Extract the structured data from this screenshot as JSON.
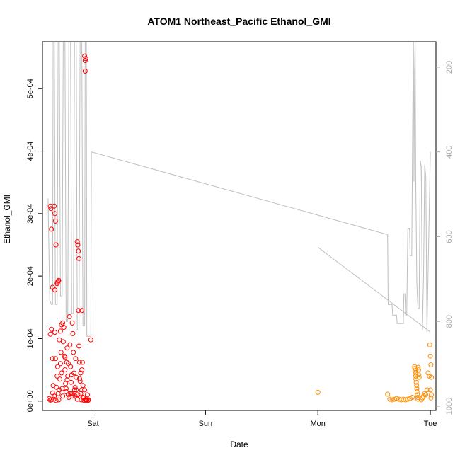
{
  "chart_data": {
    "type": "scatter",
    "title": "ATOM1 Northeast_Pacific Ethanol_GMI",
    "xlabel": "Date",
    "ylabel": "Ethanol_GMI",
    "x_unit": "days",
    "xlim": [
      -0.45,
      3.05
    ],
    "ylim": [
      -1.5e-05,
      0.000575
    ],
    "x_ticks": [
      {
        "value": 0,
        "label": "Sat"
      },
      {
        "value": 1,
        "label": "Sun"
      },
      {
        "value": 2,
        "label": "Mon"
      },
      {
        "value": 3,
        "label": "Tue"
      }
    ],
    "y_ticks": [
      {
        "value": 0,
        "label": "0e+00"
      },
      {
        "value": 0.0001,
        "label": "1e-04"
      },
      {
        "value": 0.0002,
        "label": "2e-04"
      },
      {
        "value": 0.0003,
        "label": "3e-04"
      },
      {
        "value": 0.0004,
        "label": "4e-04"
      },
      {
        "value": 0.0005,
        "label": "5e-04"
      }
    ],
    "right_axis": {
      "label": "",
      "color": "#a8a8a8",
      "lim_top": 140,
      "lim_bottom": 1010,
      "ticks": [
        {
          "value": 200,
          "label": "200"
        },
        {
          "value": 400,
          "label": "400"
        },
        {
          "value": 600,
          "label": "600"
        },
        {
          "value": 800,
          "label": "800"
        },
        {
          "value": 1000,
          "label": "1000"
        }
      ]
    },
    "series": [
      {
        "color": "#ff0000",
        "marker": "open-circle",
        "points": [
          [
            -0.39,
            4e-06
          ],
          [
            -0.38,
            1.5e-06
          ],
          [
            -0.37,
            2e-06
          ],
          [
            -0.36,
            1.3e-05
          ],
          [
            -0.355,
            2.5e-05
          ],
          [
            -0.35,
            3e-06
          ],
          [
            -0.345,
            8e-06
          ],
          [
            -0.34,
            0.00011
          ],
          [
            -0.335,
            6.8e-05
          ],
          [
            -0.33,
            1e-06
          ],
          [
            -0.325,
            2.2e-05
          ],
          [
            -0.32,
            4e-05
          ],
          [
            -0.315,
            5.5e-05
          ],
          [
            -0.31,
            1.2e-05
          ],
          [
            -0.305,
            2e-06
          ],
          [
            -0.3,
            1.8e-05
          ],
          [
            -0.295,
            3.5e-05
          ],
          [
            -0.29,
            6e-05
          ],
          [
            -0.285,
            7.8e-05
          ],
          [
            -0.28,
            4.5e-05
          ],
          [
            -0.275,
            2e-05
          ],
          [
            -0.27,
            8e-06
          ],
          [
            -0.265,
            9.5e-05
          ],
          [
            -0.26,
            0.000118
          ],
          [
            -0.255,
            7.2e-05
          ],
          [
            -0.25,
            5e-05
          ],
          [
            -0.245,
            2.8e-05
          ],
          [
            -0.24,
            1.5e-05
          ],
          [
            -0.235,
            6.2e-05
          ],
          [
            -0.23,
            8.5e-05
          ],
          [
            -0.225,
            4e-05
          ],
          [
            -0.22,
            1e-05
          ],
          [
            -0.215,
            6e-06
          ],
          [
            -0.21,
            0.000135
          ],
          [
            -0.205,
            9e-05
          ],
          [
            -0.2,
            5.5e-05
          ],
          [
            -0.195,
            3e-05
          ],
          [
            -0.19,
            1.2e-05
          ],
          [
            -0.185,
            0.000125
          ],
          [
            -0.18,
            0.000108
          ],
          [
            -0.175,
            7.8e-05
          ],
          [
            -0.17,
            4.5e-05
          ],
          [
            -0.165,
            1.8e-05
          ],
          [
            -0.16,
            8e-06
          ],
          [
            -0.155,
            6.8e-05
          ],
          [
            -0.15,
            3.8e-05
          ],
          [
            -0.145,
            1e-05
          ],
          [
            -0.14,
            3e-06
          ],
          [
            -0.135,
            1e-05
          ],
          [
            -0.13,
            0.000145
          ],
          [
            -0.125,
            8.8e-05
          ],
          [
            -0.12,
            6.2e-05
          ],
          [
            -0.115,
            3.2e-05
          ],
          [
            -0.11,
            1.2e-05
          ],
          [
            -0.105,
            2e-06
          ],
          [
            -0.1,
            5e-05
          ],
          [
            -0.095,
            6.2e-05
          ],
          [
            -0.09,
            2.5e-05
          ],
          [
            -0.085,
            5e-06
          ],
          [
            -0.08,
            1e-06
          ],
          [
            -0.075,
            1.8e-05
          ],
          [
            -0.07,
            2e-06
          ],
          [
            -0.065,
            1.5e-06
          ],
          [
            -0.06,
            2e-06
          ],
          [
            -0.055,
            2e-06
          ],
          [
            -0.05,
            1e-05
          ],
          [
            -0.045,
            1e-06
          ],
          [
            -0.04,
            2e-06
          ],
          [
            -0.02,
            9.8e-05
          ],
          [
            -0.38,
            0.000312
          ],
          [
            -0.375,
            0.000308
          ],
          [
            -0.37,
            0.000275
          ],
          [
            -0.34,
            0.0003
          ],
          [
            -0.335,
            0.000288
          ],
          [
            -0.33,
            0.00025
          ],
          [
            -0.34,
            0.000178
          ],
          [
            -0.36,
            0.000182
          ],
          [
            -0.32,
            0.000188
          ],
          [
            -0.315,
            0.00019
          ],
          [
            -0.31,
            0.000192
          ],
          [
            -0.305,
            0.000193
          ],
          [
            -0.345,
            0.000312
          ],
          [
            -0.14,
            0.000255
          ],
          [
            -0.135,
            0.00025
          ],
          [
            -0.13,
            0.00024
          ],
          [
            -0.125,
            0.000228
          ],
          [
            -0.1,
            0.000145
          ],
          [
            -0.075,
            0.000552
          ],
          [
            -0.07,
            0.000545
          ],
          [
            -0.065,
            0.000548
          ],
          [
            -0.07,
            0.000528
          ],
          [
            -0.38,
            0.000107
          ],
          [
            -0.37,
            0.000115
          ],
          [
            -0.36,
            6.8e-05
          ],
          [
            -0.3,
            9.8e-05
          ],
          [
            -0.29,
            0.000112
          ],
          [
            -0.28,
            0.000122
          ],
          [
            -0.27,
            0.000125
          ],
          [
            -0.25,
            7e-05
          ],
          [
            -0.24,
            2e-05
          ],
          [
            -0.23,
            3.4e-05
          ],
          [
            -0.22,
            6e-05
          ],
          [
            -0.2,
            1.2e-05
          ],
          [
            -0.19,
            4.2e-05
          ],
          [
            -0.18,
            8e-06
          ],
          [
            -0.16,
            2.2e-05
          ],
          [
            -0.15,
            1.8e-05
          ],
          [
            -0.12,
            3.6e-05
          ],
          [
            -0.11,
            4.5e-05
          ],
          [
            -0.1,
            1.8e-05
          ],
          [
            -0.09,
            6e-06
          ]
        ]
      },
      {
        "color": "#ff8c00",
        "marker": "open-circle",
        "points": [
          [
            2.0,
            1.4e-05
          ],
          [
            2.62,
            1.1e-05
          ],
          [
            2.64,
            3e-06
          ],
          [
            2.66,
            2e-06
          ],
          [
            2.68,
            3e-06
          ],
          [
            2.7,
            4e-06
          ],
          [
            2.72,
            3e-06
          ],
          [
            2.74,
            2e-06
          ],
          [
            2.76,
            3e-06
          ],
          [
            2.78,
            2e-06
          ],
          [
            2.8,
            3e-06
          ],
          [
            2.82,
            4e-06
          ],
          [
            2.84,
            6e-06
          ],
          [
            2.86,
            5.5e-05
          ],
          [
            2.862,
            5.2e-05
          ],
          [
            2.865,
            4.8e-05
          ],
          [
            2.868,
            4.5e-05
          ],
          [
            2.87,
            4e-05
          ],
          [
            2.872,
            3.5e-05
          ],
          [
            2.875,
            3e-05
          ],
          [
            2.878,
            2.5e-05
          ],
          [
            2.88,
            2e-05
          ],
          [
            2.882,
            1.5e-05
          ],
          [
            2.885,
            1e-05
          ],
          [
            2.888,
            6e-06
          ],
          [
            2.89,
            3e-06
          ],
          [
            2.892,
            5.4e-05
          ],
          [
            2.895,
            5e-05
          ],
          [
            2.898,
            4.2e-05
          ],
          [
            2.9,
            3.8e-05
          ],
          [
            2.92,
            2e-06
          ],
          [
            2.93,
            5e-06
          ],
          [
            2.94,
            8e-06
          ],
          [
            2.95,
            1.2e-05
          ],
          [
            2.96,
            1e-05
          ],
          [
            2.97,
            1.8e-05
          ],
          [
            2.98,
            4.5e-05
          ],
          [
            2.99,
            4e-05
          ],
          [
            2.995,
            9e-05
          ],
          [
            3.0,
            7.2e-05
          ],
          [
            3.005,
            5.8e-05
          ],
          [
            3.01,
            3.8e-05
          ],
          [
            3.0,
            1.8e-05
          ],
          [
            3.005,
            5e-06
          ],
          [
            3.01,
            1e-05
          ]
        ]
      }
    ],
    "pressure_line": {
      "color": "#bfbfbf",
      "axis": "right",
      "segments": [
        [
          [
            -0.4,
            510
          ],
          [
            -0.385,
            750
          ],
          [
            -0.37,
            760
          ],
          [
            -0.36,
            760
          ],
          [
            -0.355,
            140
          ],
          [
            -0.345,
            140
          ],
          [
            -0.335,
            760
          ],
          [
            -0.32,
            760
          ],
          [
            -0.31,
            140
          ],
          [
            -0.3,
            140
          ],
          [
            -0.29,
            740
          ],
          [
            -0.275,
            740
          ],
          [
            -0.265,
            140
          ],
          [
            -0.25,
            140
          ],
          [
            -0.24,
            800
          ],
          [
            -0.225,
            800
          ],
          [
            -0.215,
            140
          ],
          [
            -0.2,
            140
          ],
          [
            -0.19,
            780
          ],
          [
            -0.175,
            780
          ],
          [
            -0.165,
            140
          ],
          [
            -0.15,
            140
          ],
          [
            -0.14,
            820
          ],
          [
            -0.125,
            820
          ],
          [
            -0.115,
            140
          ],
          [
            -0.1,
            140
          ],
          [
            -0.09,
            810
          ],
          [
            -0.075,
            810
          ],
          [
            -0.07,
            140
          ],
          [
            -0.06,
            140
          ],
          [
            -0.055,
            835
          ],
          [
            -0.02,
            835
          ],
          [
            -0.015,
            400
          ],
          [
            2.62,
            595
          ],
          [
            2.625,
            760
          ],
          [
            2.66,
            760
          ],
          [
            2.665,
            785
          ],
          [
            2.7,
            785
          ],
          [
            2.705,
            805
          ],
          [
            2.76,
            805
          ],
          [
            2.765,
            735
          ],
          [
            2.775,
            735
          ],
          [
            2.78,
            785
          ],
          [
            2.79,
            785
          ],
          [
            2.8,
            580
          ],
          [
            2.815,
            580
          ],
          [
            2.82,
            645
          ],
          [
            2.835,
            645
          ],
          [
            2.845,
            260
          ],
          [
            2.85,
            140
          ],
          [
            2.855,
            470
          ],
          [
            2.86,
            210
          ],
          [
            2.865,
            140
          ],
          [
            2.87,
            460
          ],
          [
            2.88,
            710
          ],
          [
            2.89,
            770
          ],
          [
            2.9,
            770
          ],
          [
            2.91,
            420
          ],
          [
            2.92,
            435
          ],
          [
            2.93,
            820
          ],
          [
            2.94,
            690
          ],
          [
            2.95,
            430
          ],
          [
            2.96,
            460
          ],
          [
            2.97,
            825
          ],
          [
            3.0,
            400
          ]
        ],
        [
          [
            2.0,
            625
          ],
          [
            3.0,
            825
          ]
        ]
      ]
    }
  }
}
